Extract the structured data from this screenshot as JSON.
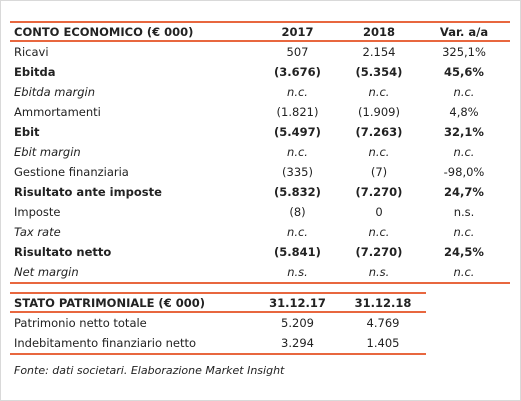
{
  "income_statement": {
    "header": [
      "CONTO ECONOMICO (€ 000)",
      "2017",
      "2018",
      "Var. a/a"
    ],
    "rows": [
      [
        "Ricavi",
        "507",
        "2.154",
        "325,1%"
      ],
      [
        "Ebitda",
        "(3.676)",
        "(5.354)",
        "45,6%"
      ],
      [
        "Ebitda margin",
        "n.c.",
        "n.c.",
        "n.c."
      ],
      [
        "Ammortamenti",
        "(1.821)",
        "(1.909)",
        "4,8%"
      ],
      [
        "Ebit",
        "(5.497)",
        "(7.263)",
        "32,1%"
      ],
      [
        "Ebit margin",
        "n.c.",
        "n.c.",
        "n.c."
      ],
      [
        "Gestione finanziaria",
        "(335)",
        "(7)",
        "-98,0%"
      ],
      [
        "Risultato ante imposte",
        "(5.832)",
        "(7.270)",
        "24,7%"
      ],
      [
        "Imposte",
        "(8)",
        "0",
        "n.s."
      ],
      [
        "Tax rate",
        "n.c.",
        "n.c.",
        "n.c."
      ],
      [
        "Risultato netto",
        "(5.841)",
        "(7.270)",
        "24,5%"
      ],
      [
        "Net margin",
        "n.s.",
        "n.s.",
        "n.c."
      ]
    ]
  },
  "balance_sheet": {
    "header": [
      "STATO PATRIMONIALE (€ 000)",
      "31.12.17",
      "31.12.18"
    ],
    "rows": [
      [
        "Patrimonio netto totale",
        "5.209",
        "4.769"
      ],
      [
        "Indebitamento finanziario netto",
        "3.294",
        "1.405"
      ]
    ]
  },
  "note": "Fonte: dati societari. Elaborazione Market Insight"
}
